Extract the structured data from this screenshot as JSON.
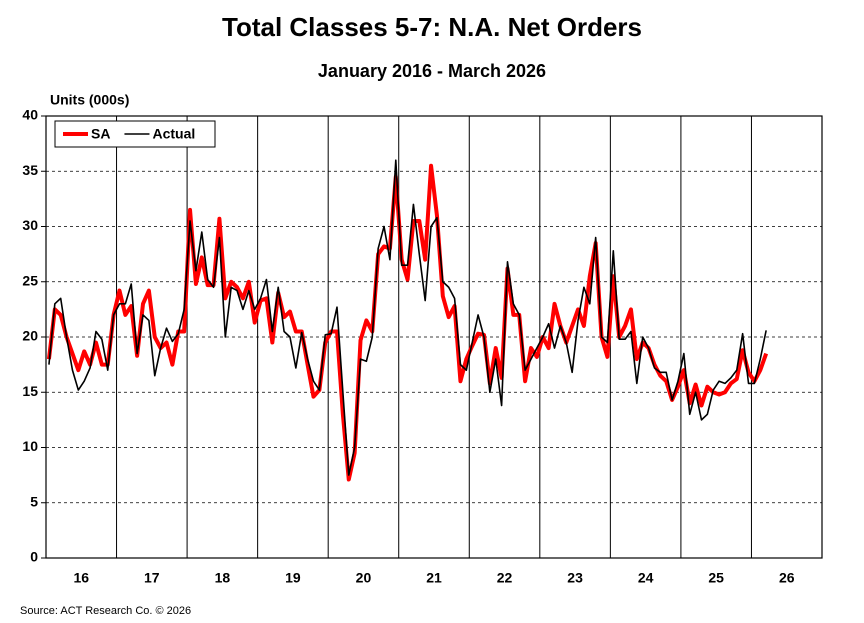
{
  "chart_data": {
    "type": "line",
    "title": "Total Classes 5-7: N.A. Net Orders",
    "subtitle": "January 2016 - March 2026",
    "y_label": "Units (000s)",
    "source": "Source: ACT Research Co. © 2026",
    "categories": [
      null,
      null,
      null,
      null,
      null,
      null,
      "16",
      null,
      null,
      null,
      null,
      null,
      null,
      null,
      null,
      null,
      null,
      null,
      "17",
      null,
      null,
      null,
      null,
      null,
      null,
      null,
      null,
      null,
      null,
      null,
      "18",
      null,
      null,
      null,
      null,
      null,
      null,
      null,
      null,
      null,
      null,
      null,
      "19",
      null,
      null,
      null,
      null,
      null,
      null,
      null,
      null,
      null,
      null,
      null,
      "20",
      null,
      null,
      null,
      null,
      null,
      null,
      null,
      null,
      null,
      null,
      null,
      "21",
      null,
      null,
      null,
      null,
      null,
      null,
      null,
      null,
      null,
      null,
      null,
      "22",
      null,
      null,
      null,
      null,
      null,
      null,
      null,
      null,
      null,
      null,
      null,
      "23",
      null,
      null,
      null,
      null,
      null,
      null,
      null,
      null,
      null,
      null,
      null,
      "24",
      null,
      null,
      null,
      null,
      null,
      null,
      null,
      null,
      null,
      null,
      null,
      "25",
      null,
      null,
      null,
      null,
      null,
      null,
      null,
      null,
      null,
      null,
      null,
      "26",
      null,
      null,
      null,
      null,
      null
    ],
    "series": [
      {
        "name": "SA",
        "color": "#ff0000",
        "values": [
          18,
          22.5,
          22,
          20,
          18.5,
          17,
          18.7,
          17.5,
          19.5,
          17.5,
          17.5,
          22,
          24.2,
          22,
          22.8,
          18.3,
          23,
          24.2,
          20,
          19,
          19.5,
          17.5,
          20.5,
          20.5,
          31.5,
          24.8,
          27.2,
          24.7,
          24.7,
          30.7,
          23.5,
          25,
          24.5,
          23.5,
          25,
          21.3,
          23.3,
          23.5,
          19.5,
          24,
          21.8,
          22.3,
          20.5,
          20.5,
          17.5,
          14.6,
          15.2,
          19.5,
          20.5,
          20.5,
          13,
          7.1,
          9.5,
          19.7,
          21.5,
          20.5,
          27.5,
          28.2,
          28,
          34.5,
          27,
          25.2,
          30.5,
          30.5,
          27,
          35.5,
          31,
          23.7,
          21.8,
          22.8,
          16,
          18,
          19.2,
          20.3,
          20.2,
          15.8,
          19,
          16.3,
          26.2,
          22,
          22,
          16,
          19,
          18.2,
          20,
          19,
          23,
          21,
          19.5,
          21,
          22.5,
          21,
          25.5,
          28.5,
          20,
          18.2,
          25.5,
          20,
          21,
          22.5,
          18,
          19.5,
          19,
          17.5,
          16.5,
          16,
          14.3,
          15.5,
          17,
          14,
          15.7,
          13.8,
          15.5,
          15,
          14.8,
          15,
          15.8,
          16.2,
          18.8,
          16.8,
          16,
          17,
          18.5,
          null,
          null,
          null,
          null,
          null,
          null,
          null,
          null,
          null
        ]
      },
      {
        "name": "Actual",
        "color": "#000000",
        "values": [
          17.5,
          23,
          23.5,
          20,
          17,
          15.2,
          16,
          17.2,
          20.5,
          19.8,
          17,
          22,
          23,
          23,
          24.8,
          18.5,
          22,
          21.5,
          16.5,
          19,
          20.8,
          19.6,
          20.3,
          22.5,
          30.5,
          26,
          29.5,
          25.2,
          24.5,
          29,
          20,
          24.5,
          24.2,
          22.5,
          24.2,
          22.5,
          23.5,
          25.2,
          20.5,
          24.5,
          20.5,
          20,
          17.2,
          20.4,
          18,
          16,
          15.2,
          20.2,
          20.3,
          22.7,
          15,
          7.5,
          10,
          18,
          17.8,
          20,
          28,
          30,
          27,
          36,
          26.5,
          26.5,
          32,
          27.5,
          23.3,
          30,
          30.8,
          25,
          24.5,
          23.5,
          17.5,
          17,
          19.5,
          22,
          20,
          15,
          18,
          13.8,
          26.8,
          23,
          22,
          17,
          18,
          19,
          20,
          21.2,
          19,
          21,
          19.5,
          16.8,
          21.5,
          24.5,
          23,
          29,
          20,
          19.5,
          27.8,
          19.8,
          19.8,
          20.5,
          15.8,
          20,
          19,
          17.2,
          16.8,
          16.8,
          14.3,
          16,
          18.5,
          13,
          15,
          12.5,
          13,
          15.2,
          16,
          15.8,
          16.3,
          17,
          20.3,
          15.8,
          15.8,
          18,
          20.6,
          null,
          null,
          null,
          null,
          null,
          null,
          null,
          null,
          null
        ]
      }
    ],
    "ylim": [
      0,
      40
    ],
    "yticks": [
      0,
      5,
      10,
      15,
      20,
      25,
      30,
      35,
      40
    ],
    "grid": true,
    "legend": "top-left"
  }
}
